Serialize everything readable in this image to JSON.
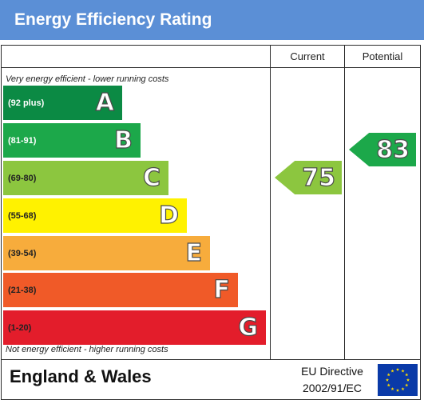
{
  "header": {
    "title": "Energy Efficiency Rating"
  },
  "columns": {
    "current": "Current",
    "potential": "Potential"
  },
  "notes": {
    "top": "Very energy efficient - lower running costs",
    "bottom": "Not energy efficient - higher running costs"
  },
  "bands": [
    {
      "range": "(92 plus)",
      "letter": "A",
      "color": "#0b8a44"
    },
    {
      "range": "(81-91)",
      "letter": "B",
      "color": "#1ca84a"
    },
    {
      "range": "(69-80)",
      "letter": "C",
      "color": "#8cc63f"
    },
    {
      "range": "(55-68)",
      "letter": "D",
      "color": "#fff200"
    },
    {
      "range": "(39-54)",
      "letter": "E",
      "color": "#f7ac3c"
    },
    {
      "range": "(21-38)",
      "letter": "F",
      "color": "#f05a28"
    },
    {
      "range": "(1-20)",
      "letter": "G",
      "color": "#e31d2b"
    }
  ],
  "ratings": {
    "current": {
      "value": "75",
      "color": "#8cc63f"
    },
    "potential": {
      "value": "83",
      "color": "#1ca84a"
    }
  },
  "footer": {
    "region": "England & Wales",
    "directive_line1": "EU Directive",
    "directive_line2": "2002/91/EC"
  },
  "icons": {
    "flag": "eu-flag-icon"
  }
}
